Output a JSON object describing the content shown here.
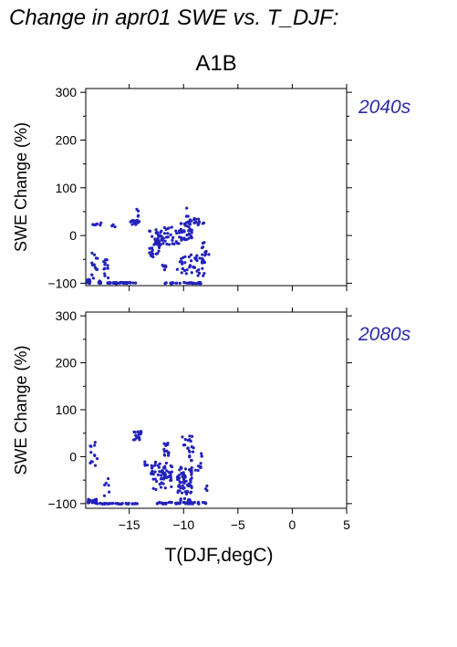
{
  "title": "Change in apr01 SWE vs. T_DJF:",
  "scenario": "A1B",
  "chart_data": [
    {
      "type": "scatter",
      "panel": "2040s",
      "ylabel": "SWE Change (%)",
      "xlim": [
        -19,
        5
      ],
      "ylim": [
        -105,
        308
      ],
      "yticks": [
        -100,
        0,
        100,
        200,
        300
      ],
      "xticks": [
        -15,
        -10,
        -5,
        0,
        5
      ],
      "point_color": "#2222bb",
      "series": [
        {
          "clusters": [
            {
              "x": [
                -18.9,
                -18.6
              ],
              "y": [
                -102,
                -92
              ],
              "n": 22
            },
            {
              "x": [
                -17.9,
                -17.5
              ],
              "y": [
                -100,
                -95
              ],
              "n": 12
            },
            {
              "x": [
                -17.0,
                -14.4
              ],
              "y": [
                -101,
                -98
              ],
              "n": 38
            },
            {
              "x": [
                -18.5,
                -17.9
              ],
              "y": [
                -90,
                -30
              ],
              "n": 14
            },
            {
              "x": [
                -17.4,
                -16.8
              ],
              "y": [
                -90,
                -50
              ],
              "n": 12
            },
            {
              "x": [
                -19.0,
                -17.5
              ],
              "y": [
                20,
                27
              ],
              "n": 8
            },
            {
              "x": [
                -16.6,
                -16.3
              ],
              "y": [
                18,
                23
              ],
              "n": 3
            },
            {
              "x": [
                -14.9,
                -14.0
              ],
              "y": [
                22,
                32
              ],
              "n": 16
            },
            {
              "x": [
                -14.4,
                -14.1
              ],
              "y": [
                36,
                58
              ],
              "n": 4
            },
            {
              "x": [
                -13.2,
                -12.0
              ],
              "y": [
                -45,
                10
              ],
              "n": 38
            },
            {
              "x": [
                -12.6,
                -10.2
              ],
              "y": [
                -20,
                18
              ],
              "n": 42
            },
            {
              "x": [
                -10.4,
                -9.2
              ],
              "y": [
                -10,
                32
              ],
              "n": 38
            },
            {
              "x": [
                -10.0,
                -9.5
              ],
              "y": [
                40,
                62
              ],
              "n": 4
            },
            {
              "x": [
                -9.5,
                -8.0
              ],
              "y": [
                22,
                36
              ],
              "n": 14
            },
            {
              "x": [
                -10.6,
                -8.0
              ],
              "y": [
                -85,
                -40
              ],
              "n": 48
            },
            {
              "x": [
                -12.0,
                -8.2
              ],
              "y": [
                -101,
                -98
              ],
              "n": 30
            },
            {
              "x": [
                -12.3,
                -11.6
              ],
              "y": [
                -80,
                -60
              ],
              "n": 6
            },
            {
              "x": [
                -8.3,
                -7.6
              ],
              "y": [
                -40,
                -10
              ],
              "n": 8
            }
          ]
        }
      ]
    },
    {
      "type": "scatter",
      "panel": "2080s",
      "ylabel": "SWE Change (%)",
      "xlabel": "T(DJF,degC)",
      "xlim": [
        -19,
        5
      ],
      "ylim": [
        -110,
        308
      ],
      "yticks": [
        -100,
        0,
        100,
        200,
        300
      ],
      "xticks": [
        -15,
        -10,
        -5,
        0,
        5
      ],
      "xtick_labels": [
        "−15",
        "−10",
        "−5",
        "0",
        "5"
      ],
      "point_color": "#2222bb",
      "series": [
        {
          "clusters": [
            {
              "x": [
                -18.8,
                -17.5
              ],
              "y": [
                -101,
                -90
              ],
              "n": 24
            },
            {
              "x": [
                -17.5,
                -14.2
              ],
              "y": [
                -101,
                -99
              ],
              "n": 40
            },
            {
              "x": [
                -17.4,
                -16.8
              ],
              "y": [
                -90,
                -45
              ],
              "n": 6
            },
            {
              "x": [
                -18.6,
                -17.9
              ],
              "y": [
                -20,
                35
              ],
              "n": 12
            },
            {
              "x": [
                -14.6,
                -13.9
              ],
              "y": [
                35,
                55
              ],
              "n": 16
            },
            {
              "x": [
                -13.9,
                -13.3
              ],
              "y": [
                -20,
                -5
              ],
              "n": 4
            },
            {
              "x": [
                -13.0,
                -11.0
              ],
              "y": [
                -70,
                -10
              ],
              "n": 60
            },
            {
              "x": [
                -11.8,
                -11.2
              ],
              "y": [
                0,
                30
              ],
              "n": 14
            },
            {
              "x": [
                -10.6,
                -9.2
              ],
              "y": [
                -80,
                -20
              ],
              "n": 60
            },
            {
              "x": [
                -10.2,
                -9.0
              ],
              "y": [
                10,
                45
              ],
              "n": 16
            },
            {
              "x": [
                -9.5,
                -8.2
              ],
              "y": [
                -30,
                10
              ],
              "n": 18
            },
            {
              "x": [
                -12.5,
                -7.9
              ],
              "y": [
                -101,
                -97
              ],
              "n": 45
            },
            {
              "x": [
                -10.4,
                -9.2
              ],
              "y": [
                -100,
                -88
              ],
              "n": 16
            },
            {
              "x": [
                -8.1,
                -7.8
              ],
              "y": [
                -80,
                -60
              ],
              "n": 3
            }
          ]
        }
      ]
    }
  ]
}
